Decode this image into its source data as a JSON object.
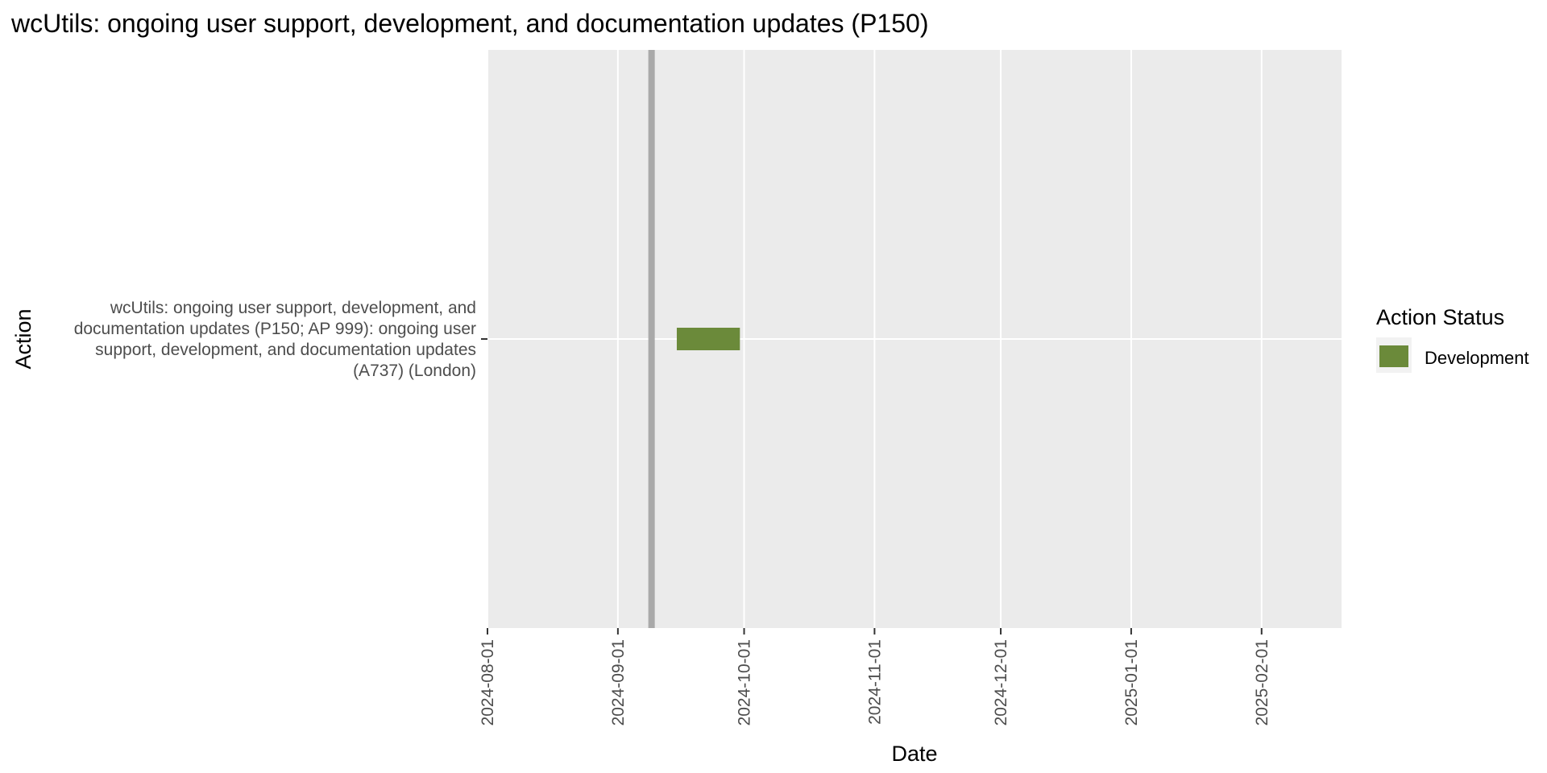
{
  "chart_data": {
    "type": "gantt",
    "title": "wcUtils: ongoing user support, development, and documentation updates (P150)",
    "xlabel": "Date",
    "ylabel": "Action",
    "xlim": [
      "2024-08-01",
      "2025-02-20"
    ],
    "x_ticks": [
      "2024-08-01",
      "2024-09-01",
      "2024-10-01",
      "2024-11-01",
      "2024-12-01",
      "2025-01-01",
      "2025-02-01"
    ],
    "today_line": "2024-09-09",
    "tasks": [
      {
        "label_lines": [
          "wcUtils: ongoing user support, development, and",
          "documentation updates (P150; AP 999): ongoing user",
          "support, development, and documentation updates",
          "(A737) (London)"
        ],
        "start": "2024-09-15",
        "end": "2024-09-30",
        "status": "Development"
      }
    ],
    "legend": {
      "title": "Action Status",
      "placement": "right",
      "items": [
        {
          "label": "Development",
          "color": "#6b8a3a"
        }
      ]
    },
    "colors": {
      "panel": "#ebebeb",
      "grid": "#ffffff",
      "today_line": "#a9a9a9",
      "bar": "#6b8a3a"
    },
    "grid": true
  }
}
